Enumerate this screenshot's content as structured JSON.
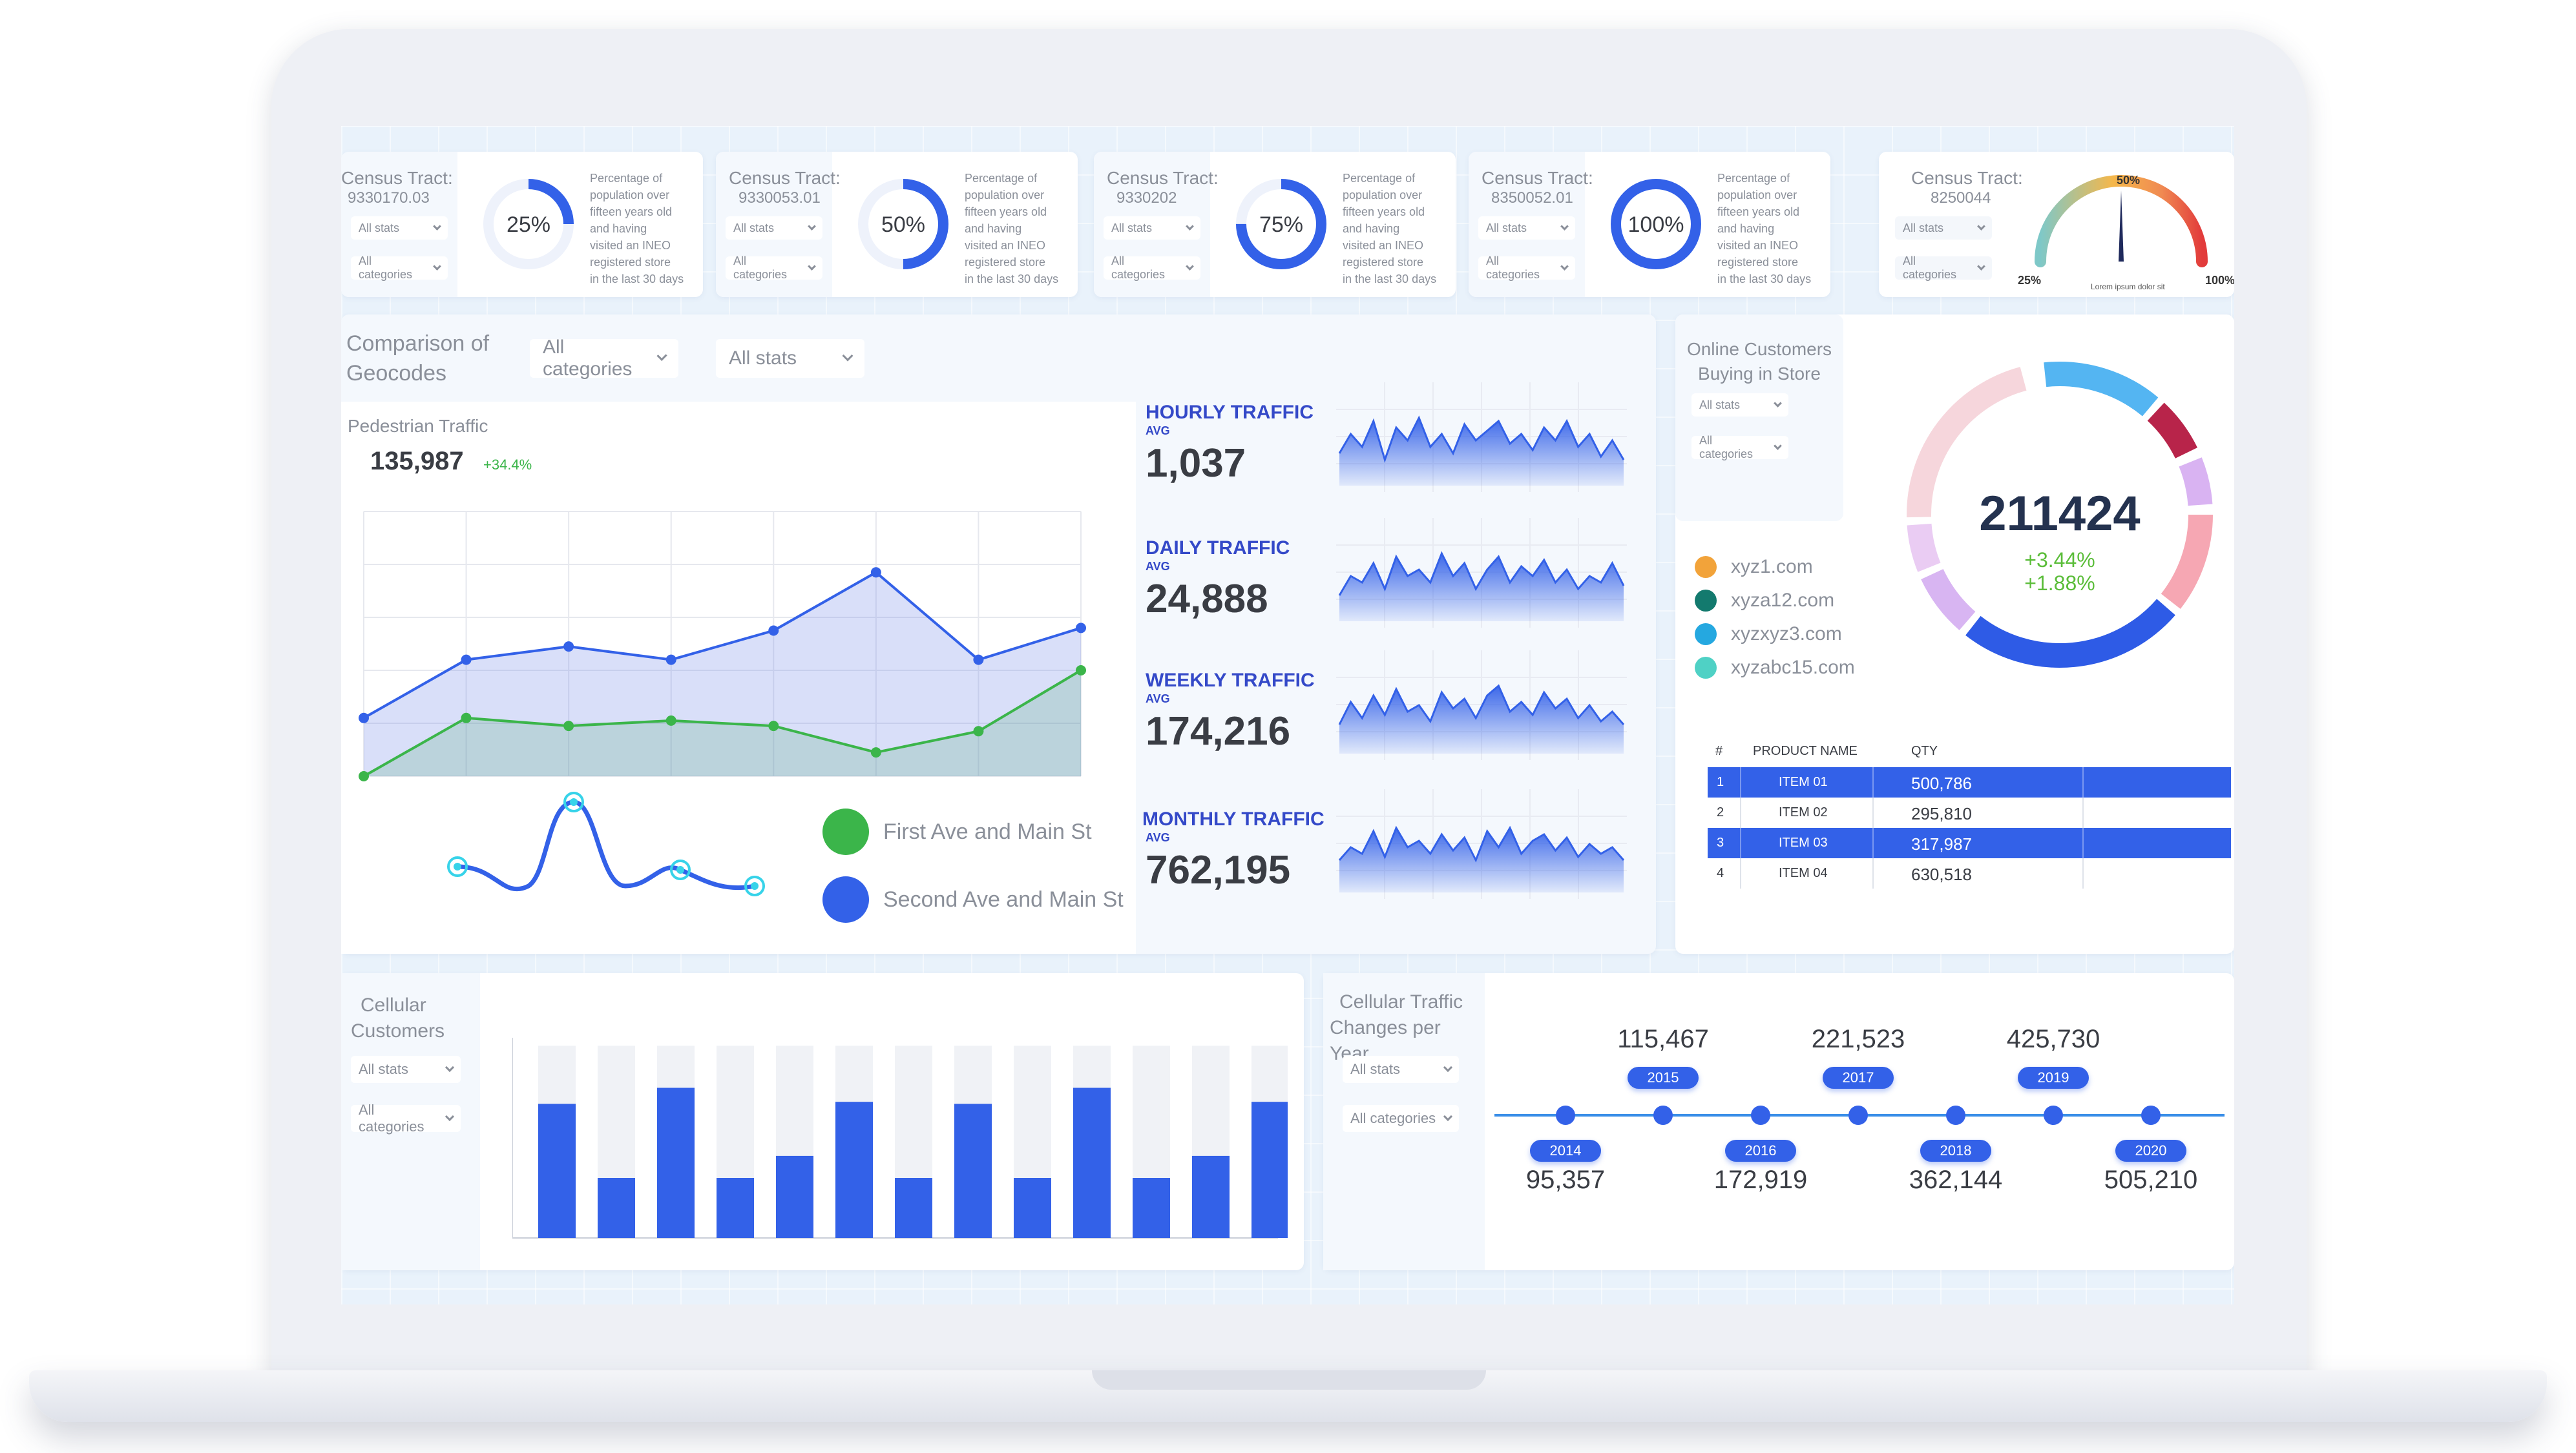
{
  "census_cards": [
    {
      "label": "Census Tract:",
      "tract": "9330170.03",
      "percent": "25%",
      "value": 25,
      "stats": "All stats",
      "categories": "All categories",
      "desc": [
        "Percentage of",
        "population over",
        "fifteen years old",
        "and having",
        "visited an INEO",
        "registered store",
        "in the last 30 days"
      ]
    },
    {
      "label": "Census Tract:",
      "tract": "9330053.01",
      "percent": "50%",
      "value": 50,
      "stats": "All stats",
      "categories": "All categories",
      "desc": [
        "Percentage of",
        "population over",
        "fifteen years old",
        "and having",
        "visited an INEO",
        "registered store",
        "in the last 30 days"
      ]
    },
    {
      "label": "Census Tract:",
      "tract": "9330202",
      "percent": "75%",
      "value": 75,
      "stats": "All stats",
      "categories": "All categories",
      "desc": [
        "Percentage of",
        "population over",
        "fifteen years old",
        "and having",
        "visited an INEO",
        "registered store",
        "in the last 30 days"
      ]
    },
    {
      "label": "Census Tract:",
      "tract": "8350052.01",
      "percent": "100%",
      "value": 100,
      "stats": "All stats",
      "categories": "All categories",
      "desc": [
        "Percentage of",
        "population over",
        "fifteen years old",
        "and having",
        "visited an INEO",
        "registered store",
        "in the last 30 days"
      ]
    }
  ],
  "gauge_card": {
    "label": "Census Tract:",
    "tract": "8250044",
    "stats": "All stats",
    "categories": "All categories",
    "min": "25%",
    "mid": "50%",
    "max": "100%",
    "caption": "Lorem ipsum  dolor sit",
    "value": 50
  },
  "geocodes": {
    "title_line1": "Comparison of",
    "title_line2": "Geocodes",
    "categories": "All categories",
    "stats": "All stats",
    "subtitle": "Pedestrian Traffic",
    "total": "135,987",
    "delta": "+34.4%",
    "legend": [
      {
        "name": "First Ave and Main St",
        "color": "#3bb54a"
      },
      {
        "name": "Second Ave and Main St",
        "color": "#3361e8"
      }
    ]
  },
  "traffic": [
    {
      "title": "HOURLY TRAFFIC",
      "avg": "AVG",
      "value": "1,037"
    },
    {
      "title": "DAILY TRAFFIC",
      "avg": "AVG",
      "value": "24,888"
    },
    {
      "title": "WEEKLY TRAFFIC",
      "avg": "AVG",
      "value": "174,216"
    },
    {
      "title": "MONTHLY TRAFFIC",
      "avg": "AVG",
      "value": "762,195"
    }
  ],
  "online": {
    "title_line1": "Online Customers",
    "title_line2": "Buying in Store",
    "stats": "All stats",
    "categories": "All categories",
    "total": "211424",
    "delta1": "+3.44%",
    "delta2": "+1.88%",
    "sites": [
      {
        "name": "xyz1.com",
        "color": "#f2a33a"
      },
      {
        "name": "xyza12.com",
        "color": "#137a6e"
      },
      {
        "name": "xyzxyz3.com",
        "color": "#25a8e0"
      },
      {
        "name": "xyzabc15.com",
        "color": "#4fd1c5"
      }
    ],
    "table": {
      "headers": [
        "#",
        "PRODUCT NAME",
        "QTY"
      ],
      "rows": [
        {
          "n": "1",
          "name": "ITEM 01",
          "qty": "500,786",
          "highlight": true
        },
        {
          "n": "2",
          "name": "ITEM 02",
          "qty": "295,810",
          "highlight": false
        },
        {
          "n": "3",
          "name": "ITEM 03",
          "qty": "317,987",
          "highlight": true
        },
        {
          "n": "4",
          "name": "ITEM 04",
          "qty": "630,518",
          "highlight": false
        }
      ]
    }
  },
  "cellular": {
    "title_line1": "Cellular",
    "title_line2": "Customers",
    "stats": "All stats",
    "categories": "All categories"
  },
  "timeline": {
    "title_line1": "Cellular Traffic",
    "title_line2": "Changes per Year",
    "stats": "All stats",
    "categories": "All categories",
    "points": [
      {
        "year": "2014",
        "value": "95,357"
      },
      {
        "year": "2015",
        "value": "115,467"
      },
      {
        "year": "2016",
        "value": "172,919"
      },
      {
        "year": "2017",
        "value": "221,523"
      },
      {
        "year": "2018",
        "value": "362,144"
      },
      {
        "year": "2019",
        "value": "425,730"
      },
      {
        "year": "2020",
        "value": "505,210"
      }
    ]
  },
  "chart_data": [
    {
      "type": "area",
      "name": "pedestrian-traffic",
      "x": [
        0,
        1,
        2,
        3,
        4,
        5,
        6,
        7
      ],
      "ylim": [
        0,
        10
      ],
      "series": [
        {
          "values": [
            2.2,
            4.4,
            4.9,
            4.4,
            5.5,
            7.7,
            4.4,
            5.6
          ]
        },
        {
          "values": [
            0,
            2.2,
            1.9,
            2.1,
            1.9,
            0.9,
            1.7,
            4
          ]
        }
      ]
    },
    {
      "type": "bar",
      "name": "cellular-customers",
      "ylim": [
        0,
        100
      ],
      "values": [
        67,
        30,
        75,
        30,
        41,
        68,
        30,
        67,
        30,
        75,
        30,
        41,
        68
      ],
      "background": [
        96,
        96,
        96,
        96,
        96,
        96,
        96,
        96,
        96,
        96,
        96,
        96,
        96
      ]
    }
  ],
  "colors": {
    "accent": "#3361e8",
    "accent_light": "#6e8cf5",
    "green": "#3bb54a",
    "text": "#3a3d44"
  }
}
